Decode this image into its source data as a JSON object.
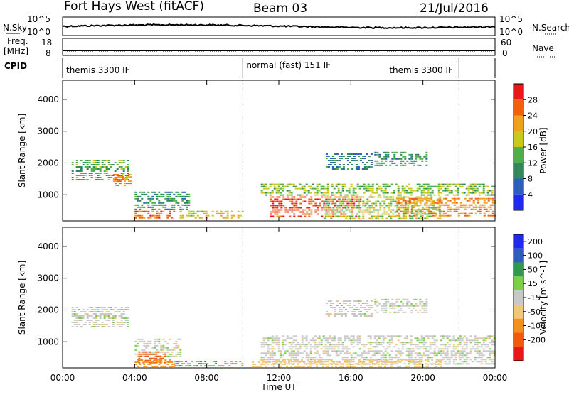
{
  "header": {
    "title": "Fort Hays West (fitACF)",
    "beam": "Beam 03",
    "date": "21/Jul/2016"
  },
  "strip_panels": {
    "nsky_label": "N.Sky",
    "nsky_ticks": [
      "10^5",
      "10^0"
    ],
    "nsearch_label": "N.Search",
    "nsearch_ticks": [
      "10^5",
      "10^0"
    ],
    "freq_label_1": "Freq.",
    "freq_label_2": "[MHz]",
    "freq_ticks": [
      "18",
      "8"
    ],
    "nave_label": "Nave",
    "nave_ticks": [
      "60",
      "0"
    ],
    "cpid_label": "CPID",
    "cpid_segments": [
      {
        "label": "themis 3300 IF",
        "start_hour": 0,
        "end_hour": 10
      },
      {
        "label": "normal (fast) 151 IF",
        "start_hour": 10,
        "end_hour": 22
      },
      {
        "label": "themis 3300 IF",
        "start_hour": 22,
        "end_hour": 24
      }
    ]
  },
  "x_axis": {
    "label": "Time UT",
    "range_hours": [
      0,
      24
    ],
    "tick_labels": [
      "00:00",
      "04:00",
      "08:00",
      "12:00",
      "16:00",
      "20:00",
      "00:00"
    ]
  },
  "chart_data": [
    {
      "type": "heatmap",
      "title": "Power",
      "ylabel": "Slant Range [km]",
      "ylim": [
        180,
        4600
      ],
      "y_ticks": [
        "1000",
        "2000",
        "3000",
        "4000"
      ],
      "colorbar_label": "Power [dB]",
      "colorbar_ticks": [
        "4",
        "8",
        "12",
        "16",
        "20",
        "24",
        "28"
      ],
      "colorbar_range": [
        0,
        30
      ],
      "colors": [
        "#1f2be8",
        "#2b5fb8",
        "#2f8a5a",
        "#4fb04a",
        "#c8c820",
        "#f0a020",
        "#f06010",
        "#e81818"
      ],
      "regions": [
        {
          "t0": 0.5,
          "t1": 3.6,
          "r0": 1450,
          "r1": 2100,
          "value": 12
        },
        {
          "t0": 2.8,
          "t1": 3.8,
          "r0": 1300,
          "r1": 1650,
          "value": 22
        },
        {
          "t0": 4.0,
          "t1": 6.2,
          "r0": 250,
          "r1": 500,
          "value": 24
        },
        {
          "t0": 4.0,
          "t1": 7.0,
          "r0": 500,
          "r1": 1100,
          "value": 10
        },
        {
          "t0": 6.5,
          "t1": 10.0,
          "r0": 250,
          "r1": 500,
          "value": 18
        },
        {
          "t0": 11.5,
          "t1": 16.5,
          "r0": 300,
          "r1": 950,
          "value": 26
        },
        {
          "t0": 11.0,
          "t1": 24.0,
          "r0": 950,
          "r1": 1350,
          "value": 14
        },
        {
          "t0": 14.5,
          "t1": 21.0,
          "r0": 250,
          "r1": 950,
          "value": 16
        },
        {
          "t0": 18.5,
          "t1": 24.0,
          "r0": 300,
          "r1": 900,
          "value": 22
        },
        {
          "t0": 14.6,
          "t1": 17.2,
          "r0": 1800,
          "r1": 2300,
          "value": 8
        },
        {
          "t0": 17.3,
          "t1": 20.2,
          "r0": 1900,
          "r1": 2350,
          "value": 10
        }
      ]
    },
    {
      "type": "heatmap",
      "title": "Velocity",
      "ylabel": "Slant Range [km]",
      "ylim": [
        180,
        4600
      ],
      "y_ticks": [
        "1000",
        "2000",
        "3000",
        "4000"
      ],
      "colorbar_label": "Velocity [m s^-1]",
      "colorbar_ticks": [
        "200",
        "100",
        "50",
        "15",
        "-15",
        "-50",
        "-100",
        "-200"
      ],
      "colorbar_range": [
        -250,
        250
      ],
      "colors": [
        "#e81818",
        "#f05a10",
        "#f09020",
        "#f0c878",
        "#c8c8c8",
        "#7ad04a",
        "#2f9a4a",
        "#2b5fb8",
        "#1f2be8"
      ],
      "regions": [
        {
          "t0": 0.5,
          "t1": 3.6,
          "r0": 1450,
          "r1": 2100,
          "value": 0
        },
        {
          "t0": 4.0,
          "t1": 6.5,
          "r0": 500,
          "r1": 1100,
          "value": 0
        },
        {
          "t0": 4.2,
          "t1": 5.8,
          "r0": 350,
          "r1": 700,
          "value": -180
        },
        {
          "t0": 4.0,
          "t1": 6.2,
          "r0": 200,
          "r1": 450,
          "value": -80
        },
        {
          "t0": 6.2,
          "t1": 8.5,
          "r0": 200,
          "r1": 400,
          "value": 40
        },
        {
          "t0": 8.5,
          "t1": 10.0,
          "r0": 200,
          "r1": 400,
          "value": -80
        },
        {
          "t0": 11.0,
          "t1": 24.0,
          "r0": 300,
          "r1": 1200,
          "value": 0
        },
        {
          "t0": 10.5,
          "t1": 21.0,
          "r0": 200,
          "r1": 450,
          "value": -30
        },
        {
          "t0": 14.6,
          "t1": 17.2,
          "r0": 1800,
          "r1": 2300,
          "value": 0
        },
        {
          "t0": 17.3,
          "t1": 20.2,
          "r0": 1900,
          "r1": 2350,
          "value": 0
        }
      ]
    }
  ]
}
